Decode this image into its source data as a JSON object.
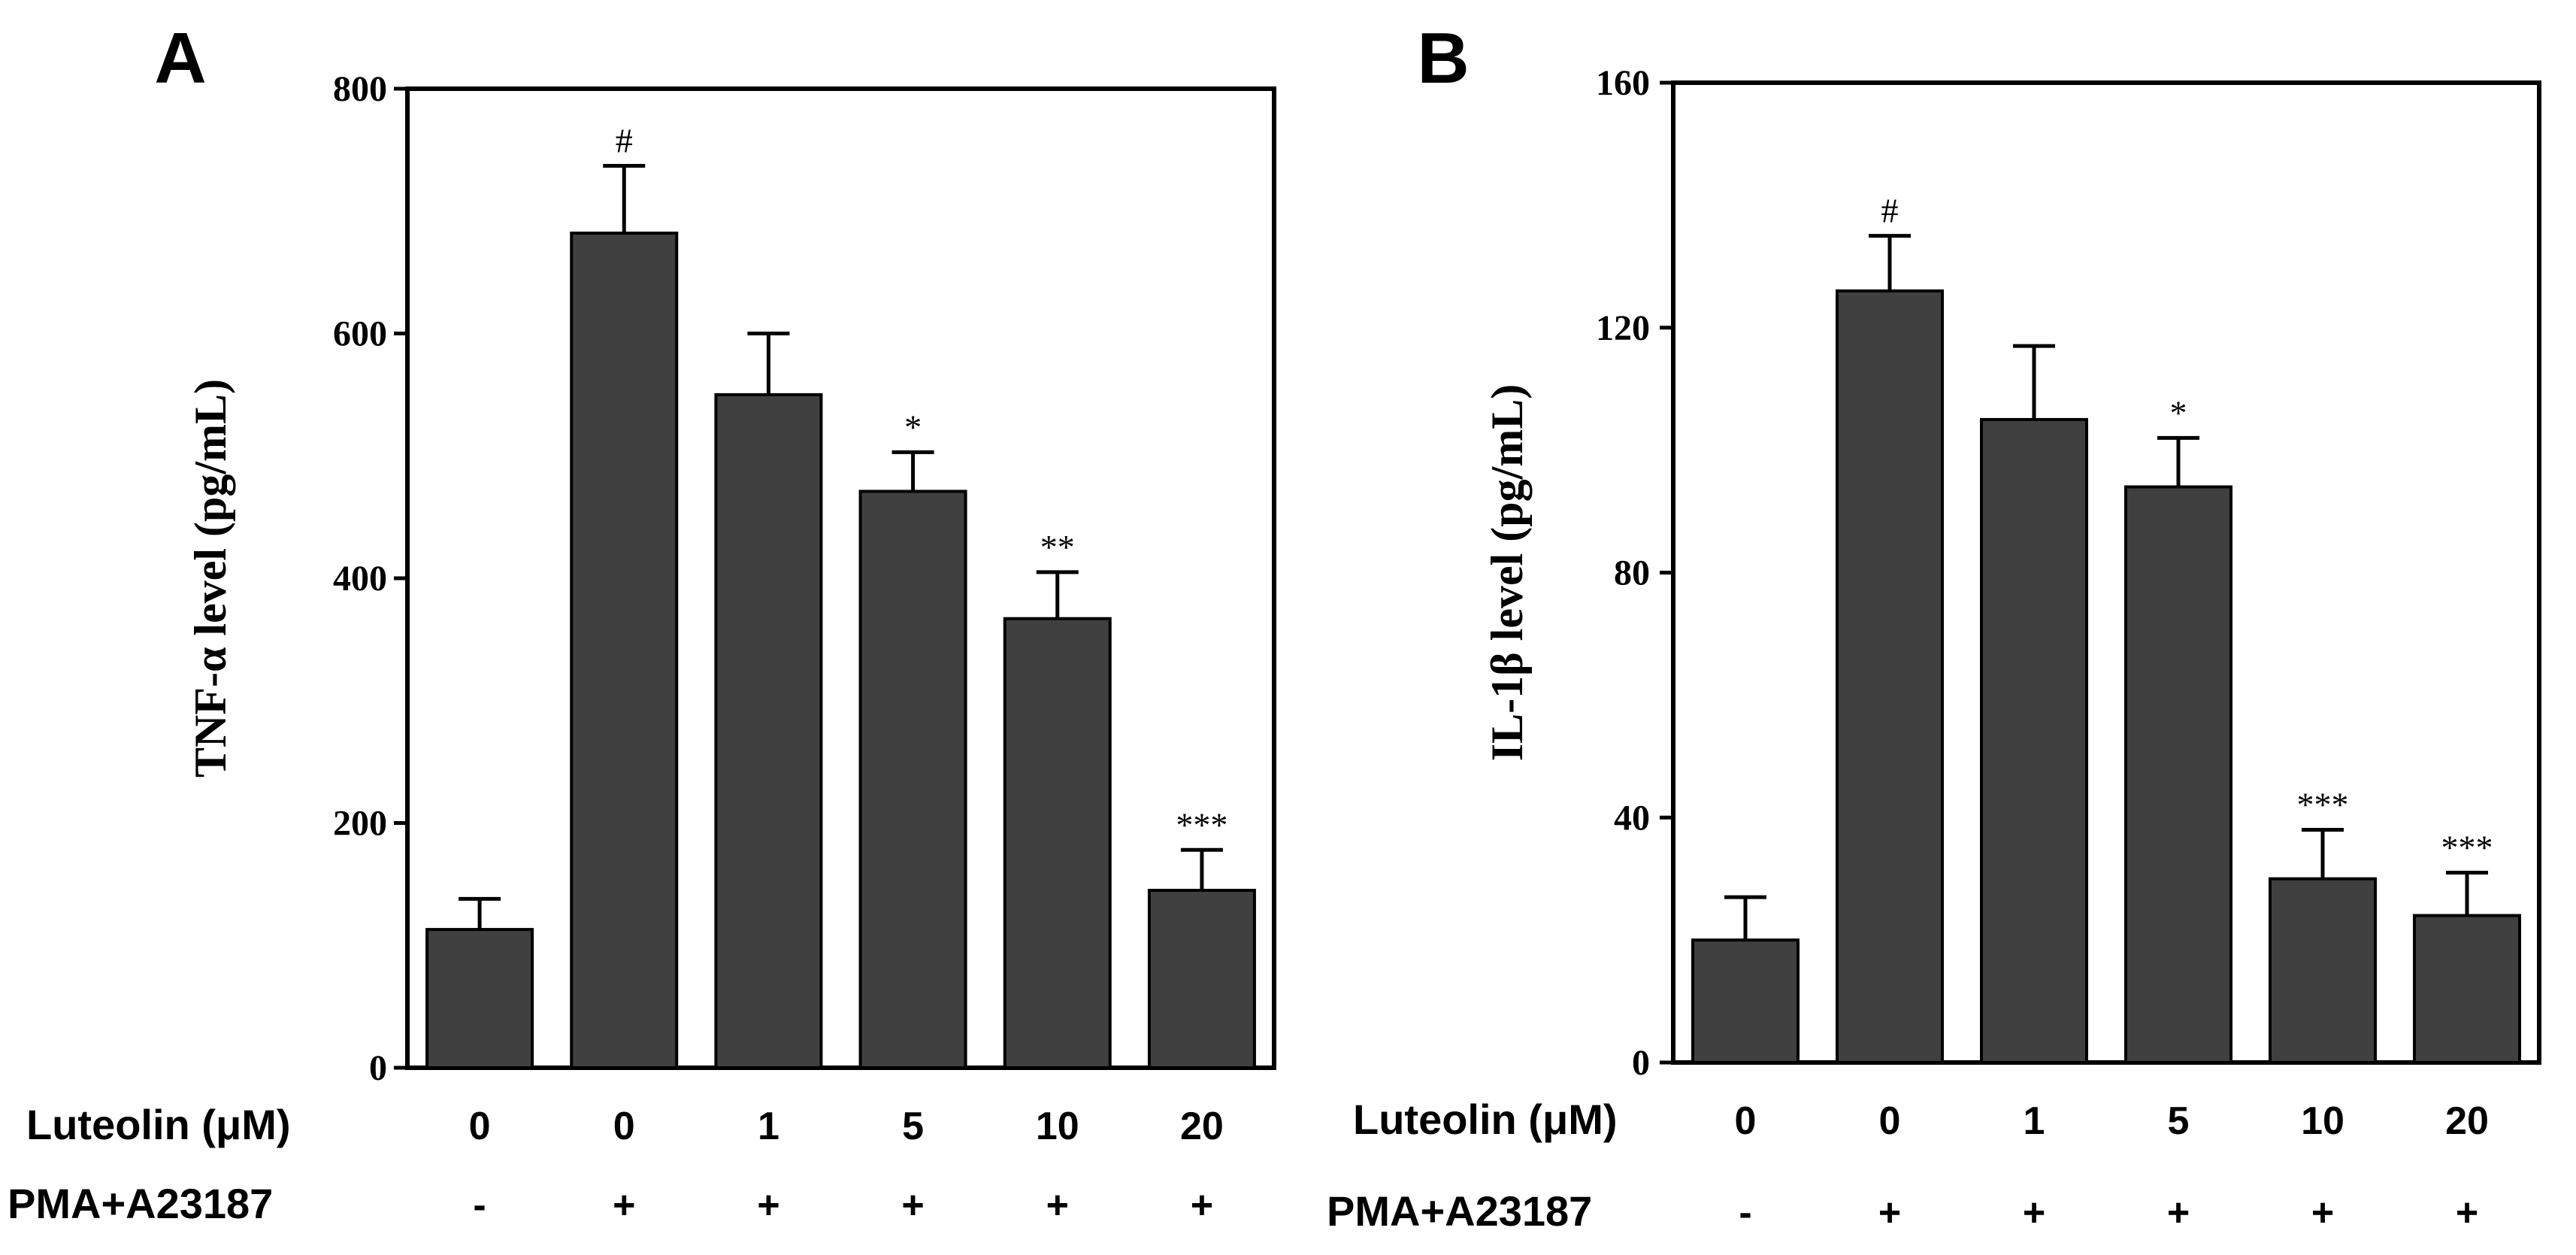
{
  "chart_data": [
    {
      "panel": "A",
      "type": "bar",
      "ylabel": "TNF-α level (pg/mL)",
      "ylim": [
        0,
        800
      ],
      "yticks": [
        "0",
        "200",
        "400",
        "600",
        "800"
      ],
      "values": [
        113,
        682,
        550,
        471,
        367,
        145
      ],
      "errors": [
        25,
        55,
        50,
        32,
        38,
        33
      ],
      "annotations": [
        "",
        "#",
        "",
        "*",
        "**",
        "***"
      ],
      "bar_color": "#404040"
    },
    {
      "panel": "B",
      "type": "bar",
      "ylabel": "IL-1β level (pg/mL)",
      "ylim": [
        0,
        160
      ],
      "yticks": [
        "0",
        "40",
        "80",
        "120",
        "160"
      ],
      "values": [
        20,
        126,
        105,
        94,
        30,
        24
      ],
      "errors": [
        7,
        9,
        12,
        8,
        8,
        7
      ],
      "annotations": [
        "",
        "#",
        "",
        "*",
        "***",
        "***"
      ],
      "bar_color": "#404040"
    }
  ],
  "conditions": {
    "luteolin_label": "Luteolin (μM)",
    "luteolin_values": [
      "0",
      "0",
      "1",
      "5",
      "10",
      "20"
    ],
    "pma_label": "PMA+A23187",
    "pma_values": [
      "-",
      "+",
      "+",
      "+",
      "+",
      "+"
    ]
  }
}
